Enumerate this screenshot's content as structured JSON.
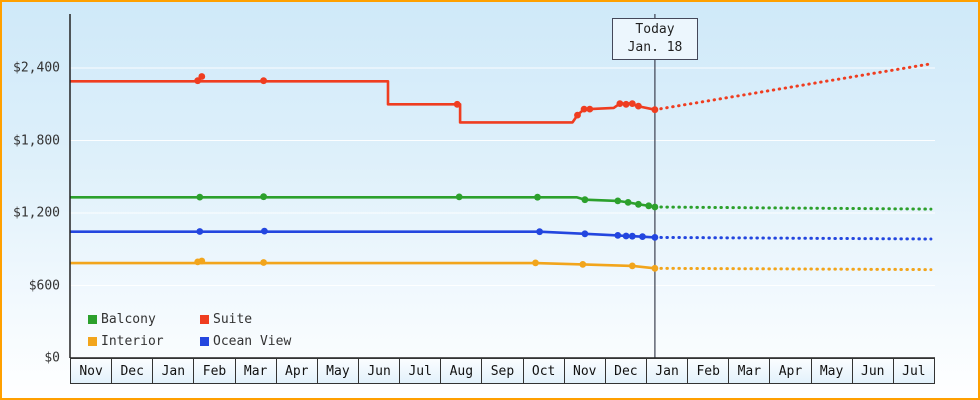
{
  "frame": {
    "border_color": "#ffa000",
    "background_top": "#cfe9f9",
    "background_bottom": "#ffffff"
  },
  "today_label": {
    "line1": "Today",
    "line2": "Jan. 18"
  },
  "legend": [
    {
      "label": "Balcony",
      "color": "#2ca02c"
    },
    {
      "label": "Suite",
      "color": "#ef3d20"
    },
    {
      "label": "Interior",
      "color": "#f2a51c"
    },
    {
      "label": "Ocean View",
      "color": "#2346df"
    }
  ],
  "chart_data": {
    "type": "line",
    "x_axis": {
      "unit": "month",
      "categories": [
        "Nov",
        "Dec",
        "Jan",
        "Feb",
        "Mar",
        "Apr",
        "May",
        "Jun",
        "Jul",
        "Aug",
        "Sep",
        "Oct",
        "Nov",
        "Dec",
        "Jan",
        "Feb",
        "Mar",
        "Apr",
        "May",
        "Jun",
        "Jul"
      ]
    },
    "y_axis": {
      "currency": "USD",
      "range": [
        0,
        2900
      ],
      "ticks": [
        {
          "label": "$0",
          "value": 0
        },
        {
          "label": "$600",
          "value": 600
        },
        {
          "label": "$1,200",
          "value": 1200
        },
        {
          "label": "$1,800",
          "value": 1800
        },
        {
          "label": "$2,400",
          "value": 2400
        }
      ]
    },
    "grid": true,
    "legend_position": "bottom-left",
    "today_x": 14.2,
    "series": [
      {
        "name": "Suite",
        "line": [
          [
            0,
            2290
          ],
          [
            7.72,
            2290
          ],
          [
            7.72,
            2100
          ],
          [
            9.47,
            2100
          ],
          [
            9.47,
            1950
          ],
          [
            12.2,
            1950
          ],
          [
            12.32,
            2010
          ],
          [
            12.48,
            2060
          ],
          [
            12.62,
            2060
          ],
          [
            13.2,
            2070
          ],
          [
            13.35,
            2105
          ],
          [
            13.6,
            2105
          ],
          [
            13.78,
            2085
          ],
          [
            14.2,
            2055
          ]
        ],
        "markers": [
          [
            3.1,
            2295
          ],
          [
            3.2,
            2330
          ],
          [
            4.7,
            2295
          ],
          [
            9.4,
            2100
          ],
          [
            12.32,
            2010
          ],
          [
            12.48,
            2060
          ],
          [
            12.62,
            2060
          ],
          [
            13.35,
            2105
          ],
          [
            13.5,
            2100
          ],
          [
            13.65,
            2105
          ],
          [
            13.8,
            2085
          ],
          [
            14.2,
            2055
          ]
        ],
        "forecast": [
          [
            14.2,
            2055
          ],
          [
            20.9,
            2435
          ]
        ]
      },
      {
        "name": "Balcony",
        "line": [
          [
            0,
            1330
          ],
          [
            12.3,
            1330
          ],
          [
            12.5,
            1310
          ],
          [
            13.3,
            1300
          ],
          [
            13.55,
            1288
          ],
          [
            13.8,
            1272
          ],
          [
            14.0,
            1262
          ],
          [
            14.2,
            1250
          ]
        ],
        "markers": [
          [
            3.15,
            1332
          ],
          [
            4.7,
            1335
          ],
          [
            9.45,
            1333
          ],
          [
            11.35,
            1331
          ],
          [
            12.5,
            1310
          ],
          [
            13.3,
            1300
          ],
          [
            13.55,
            1288
          ],
          [
            13.8,
            1272
          ],
          [
            14.05,
            1260
          ],
          [
            14.2,
            1250
          ]
        ],
        "forecast": [
          [
            14.2,
            1250
          ],
          [
            20.9,
            1232
          ]
        ]
      },
      {
        "name": "Ocean View",
        "line": [
          [
            0,
            1045
          ],
          [
            11.4,
            1045
          ],
          [
            12.5,
            1028
          ],
          [
            13.3,
            1015
          ],
          [
            13.5,
            1010
          ],
          [
            13.65,
            1008
          ],
          [
            13.85,
            1005
          ],
          [
            14.2,
            998
          ]
        ],
        "markers": [
          [
            3.15,
            1047
          ],
          [
            4.72,
            1050
          ],
          [
            11.4,
            1045
          ],
          [
            12.5,
            1028
          ],
          [
            13.3,
            1015
          ],
          [
            13.5,
            1010
          ],
          [
            13.65,
            1008
          ],
          [
            13.9,
            1005
          ],
          [
            14.2,
            998
          ]
        ],
        "forecast": [
          [
            14.2,
            998
          ],
          [
            20.9,
            985
          ]
        ]
      },
      {
        "name": "Interior",
        "line": [
          [
            0,
            785
          ],
          [
            11.3,
            785
          ],
          [
            12.45,
            775
          ],
          [
            13.65,
            762
          ],
          [
            14.2,
            742
          ]
        ],
        "markers": [
          [
            3.1,
            795
          ],
          [
            3.2,
            803
          ],
          [
            4.7,
            790
          ],
          [
            11.3,
            787
          ],
          [
            12.45,
            775
          ],
          [
            13.65,
            762
          ],
          [
            14.2,
            742
          ]
        ],
        "forecast": [
          [
            14.2,
            742
          ],
          [
            20.9,
            732
          ]
        ]
      }
    ]
  }
}
